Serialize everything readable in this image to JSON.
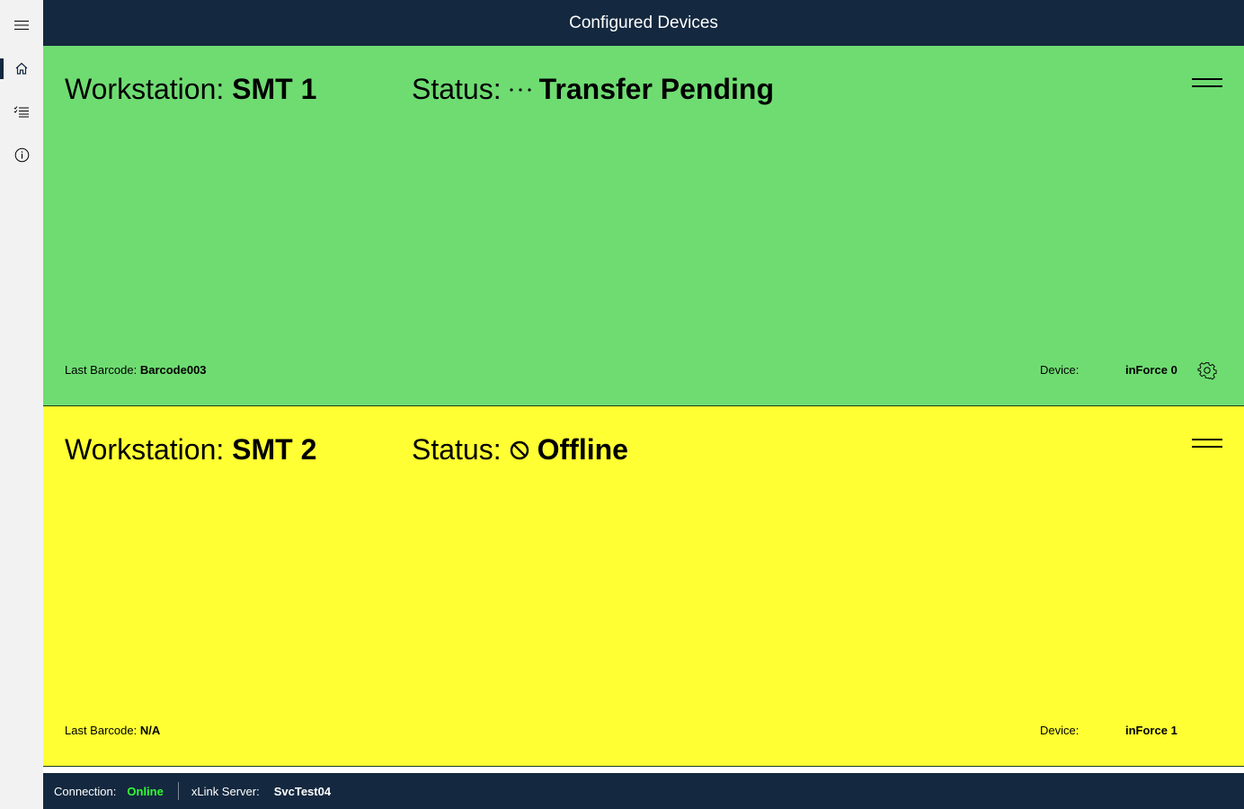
{
  "header": {
    "title": "Configured Devices"
  },
  "sidebar": {
    "items": [
      {
        "icon": "hamburger-icon"
      },
      {
        "icon": "home-icon",
        "selected": true
      },
      {
        "icon": "checklist-icon"
      },
      {
        "icon": "info-icon"
      }
    ]
  },
  "cards": [
    {
      "ws_label": "Workstation: ",
      "ws_value": "SMT 1",
      "status_label": "Status: ",
      "status_icon": "ellipsis-icon",
      "status_glyph": "···",
      "status_value": "Transfer Pending",
      "barcode_label": "Last Barcode: ",
      "barcode_value": "Barcode003",
      "device_label": "Device:",
      "device_value": "inForce 0",
      "color": "#6fdc72"
    },
    {
      "ws_label": "Workstation: ",
      "ws_value": "SMT 2",
      "status_label": "Status: ",
      "status_icon": "blocked-icon",
      "status_glyph": "⃠",
      "status_value": "Offline",
      "barcode_label": "Last Barcode: ",
      "barcode_value": "N/A",
      "device_label": "Device:",
      "device_value": "inForce 1",
      "color": "#ffff33"
    }
  ],
  "footer": {
    "connection_label": "Connection:",
    "connection_value": "Online",
    "connection_color": "#33ff33",
    "server_label": "xLink Server:",
    "server_value": "SvcTest04"
  }
}
